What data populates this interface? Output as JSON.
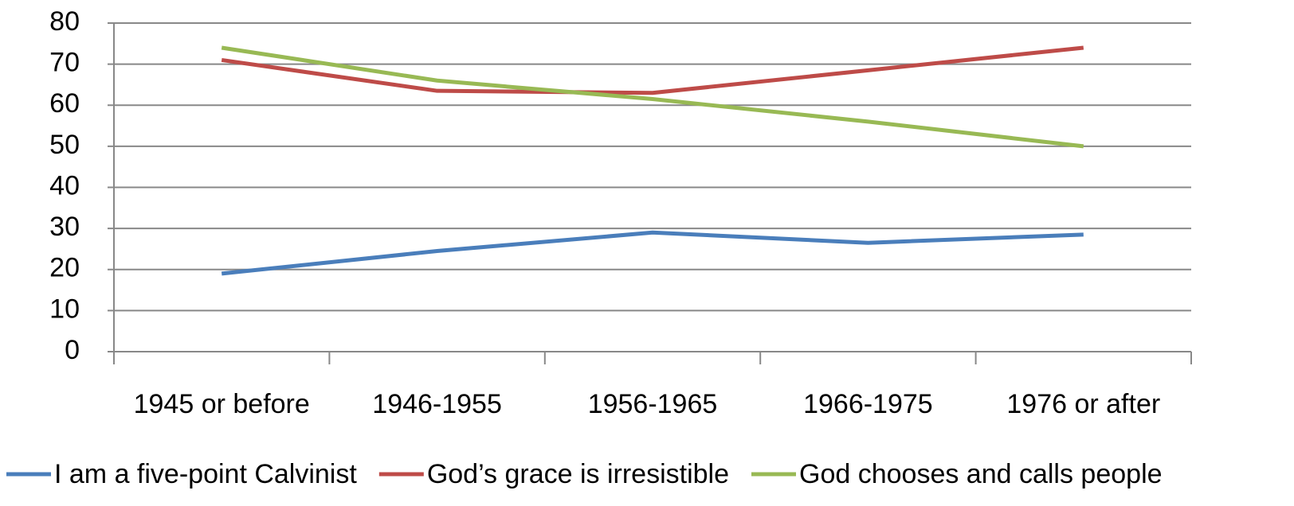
{
  "chart_data": {
    "type": "line",
    "categories": [
      "1945 or before",
      "1946-1955",
      "1956-1965",
      "1966-1975",
      "1976 or after"
    ],
    "series": [
      {
        "name": "I am a five-point Calvinist",
        "color": "#4a7ebb",
        "values": [
          19,
          24.5,
          29,
          26.5,
          28.5
        ]
      },
      {
        "name": "God’s grace is irresistible",
        "color": "#be4b48",
        "values": [
          71,
          63.5,
          63,
          68.5,
          74
        ]
      },
      {
        "name": "God chooses and calls people",
        "color": "#98b954",
        "values": [
          74,
          66,
          61.5,
          56,
          50
        ]
      }
    ],
    "ylim": [
      0,
      80
    ],
    "yticks": [
      0,
      10,
      20,
      30,
      40,
      50,
      60,
      70,
      80
    ],
    "grid": true,
    "legend": "bottom"
  }
}
